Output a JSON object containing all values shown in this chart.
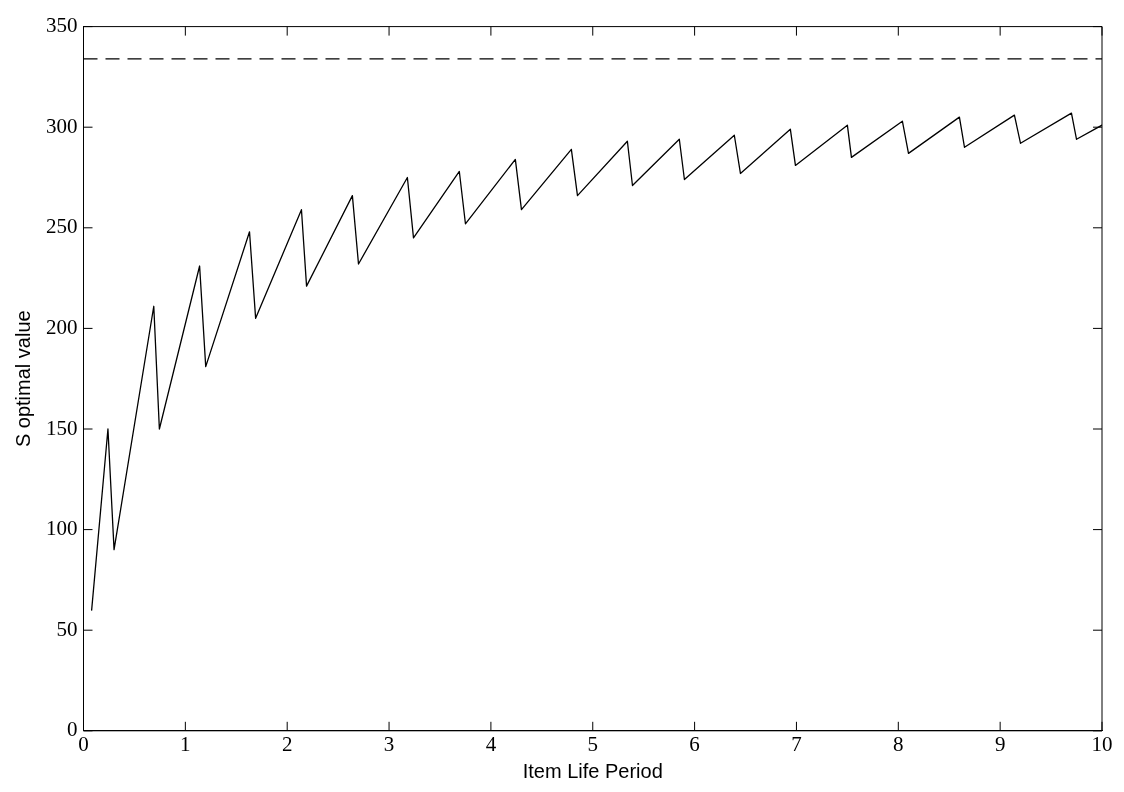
{
  "chart_data": {
    "type": "line",
    "xlabel": "Item Life Period",
    "ylabel": "S optimal value",
    "x": [
      0.08,
      0.24,
      0.3,
      0.69,
      0.745,
      1.14,
      1.2,
      1.63,
      1.69,
      2.14,
      2.19,
      2.64,
      2.7,
      3.18,
      3.24,
      3.69,
      3.75,
      4.24,
      4.3,
      4.79,
      4.85,
      5.34,
      5.39,
      5.85,
      5.9,
      6.39,
      6.45,
      6.94,
      6.99,
      7.5,
      7.54,
      8.04,
      8.1,
      8.6,
      8.65,
      9.14,
      9.2,
      9.7,
      9.75,
      10
    ],
    "series": [
      {
        "color": "#000000",
        "values": [
          60,
          150,
          90,
          211,
          150,
          231,
          181,
          248,
          205,
          259,
          221,
          266,
          232,
          275,
          245,
          278,
          252,
          284,
          259,
          289,
          266,
          293,
          271,
          294,
          274,
          296,
          277,
          299,
          281,
          301,
          285,
          303,
          287,
          305,
          290,
          306,
          292,
          307,
          294,
          301
        ]
      }
    ],
    "xlim": [
      0,
      10
    ],
    "xticks": [
      0,
      1,
      2,
      3,
      4,
      5,
      6,
      7,
      8,
      9,
      10
    ],
    "ylim": [
      0,
      350
    ],
    "yticks": [
      0,
      50,
      100,
      150,
      200,
      250,
      300,
      350
    ],
    "ref_lines": [
      {
        "axis": "y",
        "value": 334,
        "color": "#000000",
        "line_style": "dashed"
      }
    ],
    "grid": false,
    "legend": false,
    "marker": "none",
    "line_style": "solid"
  }
}
